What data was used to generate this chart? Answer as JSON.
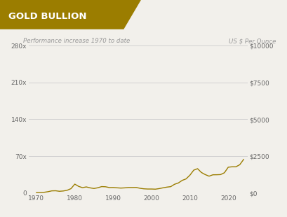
{
  "title": "GOLD BULLION",
  "title_bg_color": "#9B7D00",
  "subtitle_left": "Performance increase 1970 to date",
  "subtitle_right": "US $ Per Ounce",
  "bg_color": "#F2F0EB",
  "line_color": "#9B7D00",
  "grid_color": "#CCCCCC",
  "left_yticks": [
    0,
    70,
    140,
    210,
    280
  ],
  "left_yticklabels": [
    "0",
    "70x",
    "140x",
    "210x",
    "280x"
  ],
  "right_yticks": [
    0,
    2500,
    5000,
    7500,
    10000
  ],
  "right_yticklabels": [
    "$0",
    "$2500",
    "$5000",
    "$7500",
    "$10000"
  ],
  "xticks": [
    1970,
    1980,
    1990,
    2000,
    2010,
    2020
  ],
  "xlim": [
    1968,
    2025
  ],
  "ylim_left": [
    0,
    280
  ],
  "ylim_right": [
    0,
    10000
  ],
  "gold_prices": {
    "years": [
      1970,
      1971,
      1972,
      1973,
      1974,
      1975,
      1976,
      1977,
      1978,
      1979,
      1980,
      1981,
      1982,
      1983,
      1984,
      1985,
      1986,
      1987,
      1988,
      1989,
      1990,
      1991,
      1992,
      1993,
      1994,
      1995,
      1996,
      1997,
      1998,
      1999,
      2000,
      2001,
      2002,
      2003,
      2004,
      2005,
      2006,
      2007,
      2008,
      2009,
      2010,
      2011,
      2012,
      2013,
      2014,
      2015,
      2016,
      2017,
      2018,
      2019,
      2020,
      2021,
      2022,
      2023,
      2024
    ],
    "multiples": [
      1.0,
      1.1,
      1.6,
      2.7,
      4.3,
      4.5,
      3.5,
      4.1,
      5.4,
      8.5,
      17.1,
      12.8,
      10.4,
      11.8,
      10.0,
      8.8,
      10.2,
      12.4,
      12.1,
      10.6,
      10.7,
      10.1,
      9.6,
      10.0,
      10.7,
      10.7,
      10.8,
      9.2,
      8.2,
      7.8,
      7.8,
      7.5,
      8.6,
      10.1,
      11.4,
      12.3,
      16.8,
      19.3,
      24.2,
      27.0,
      34.0,
      43.6,
      46.4,
      39.2,
      35.2,
      32.2,
      34.8,
      34.9,
      35.2,
      38.7,
      49.2,
      50.0,
      50.0,
      53.9,
      63.9
    ]
  }
}
